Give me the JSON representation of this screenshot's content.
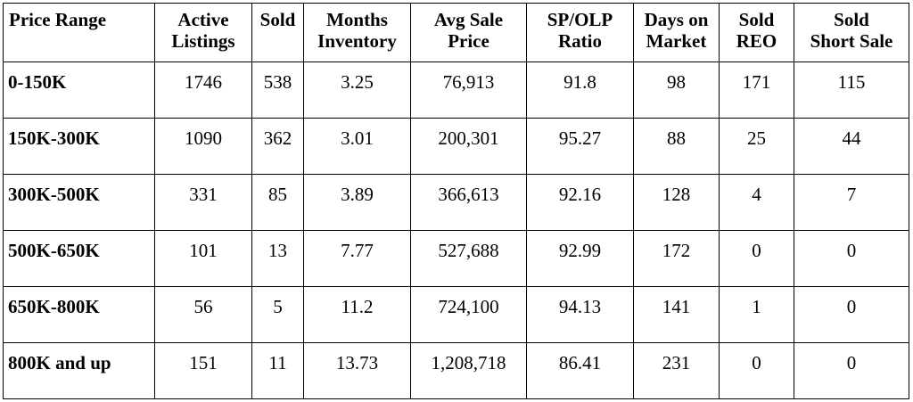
{
  "table": {
    "headers": [
      [
        "Price Range"
      ],
      [
        "Active",
        "Listings"
      ],
      [
        "Sold"
      ],
      [
        "Months",
        "Inventory"
      ],
      [
        "Avg Sale",
        "Price"
      ],
      [
        "SP/OLP",
        "Ratio"
      ],
      [
        "Days on",
        "Market"
      ],
      [
        "Sold",
        "REO"
      ],
      [
        "Sold",
        "Short Sale"
      ]
    ],
    "rows": [
      [
        "0-150K",
        "1746",
        "538",
        "3.25",
        "76,913",
        "91.8",
        "98",
        "171",
        "115"
      ],
      [
        "150K-300K",
        "1090",
        "362",
        "3.01",
        "200,301",
        "95.27",
        "88",
        "25",
        "44"
      ],
      [
        "300K-500K",
        "331",
        "85",
        "3.89",
        "366,613",
        "92.16",
        "128",
        "4",
        "7"
      ],
      [
        "500K-650K",
        "101",
        "13",
        "7.77",
        "527,688",
        "92.99",
        "172",
        "0",
        "0"
      ],
      [
        "650K-800K",
        "56",
        "5",
        "11.2",
        "724,100",
        "94.13",
        "141",
        "1",
        "0"
      ],
      [
        "800K and up",
        "151",
        "11",
        "13.73",
        "1,208,718",
        "86.41",
        "231",
        "0",
        "0"
      ]
    ]
  }
}
